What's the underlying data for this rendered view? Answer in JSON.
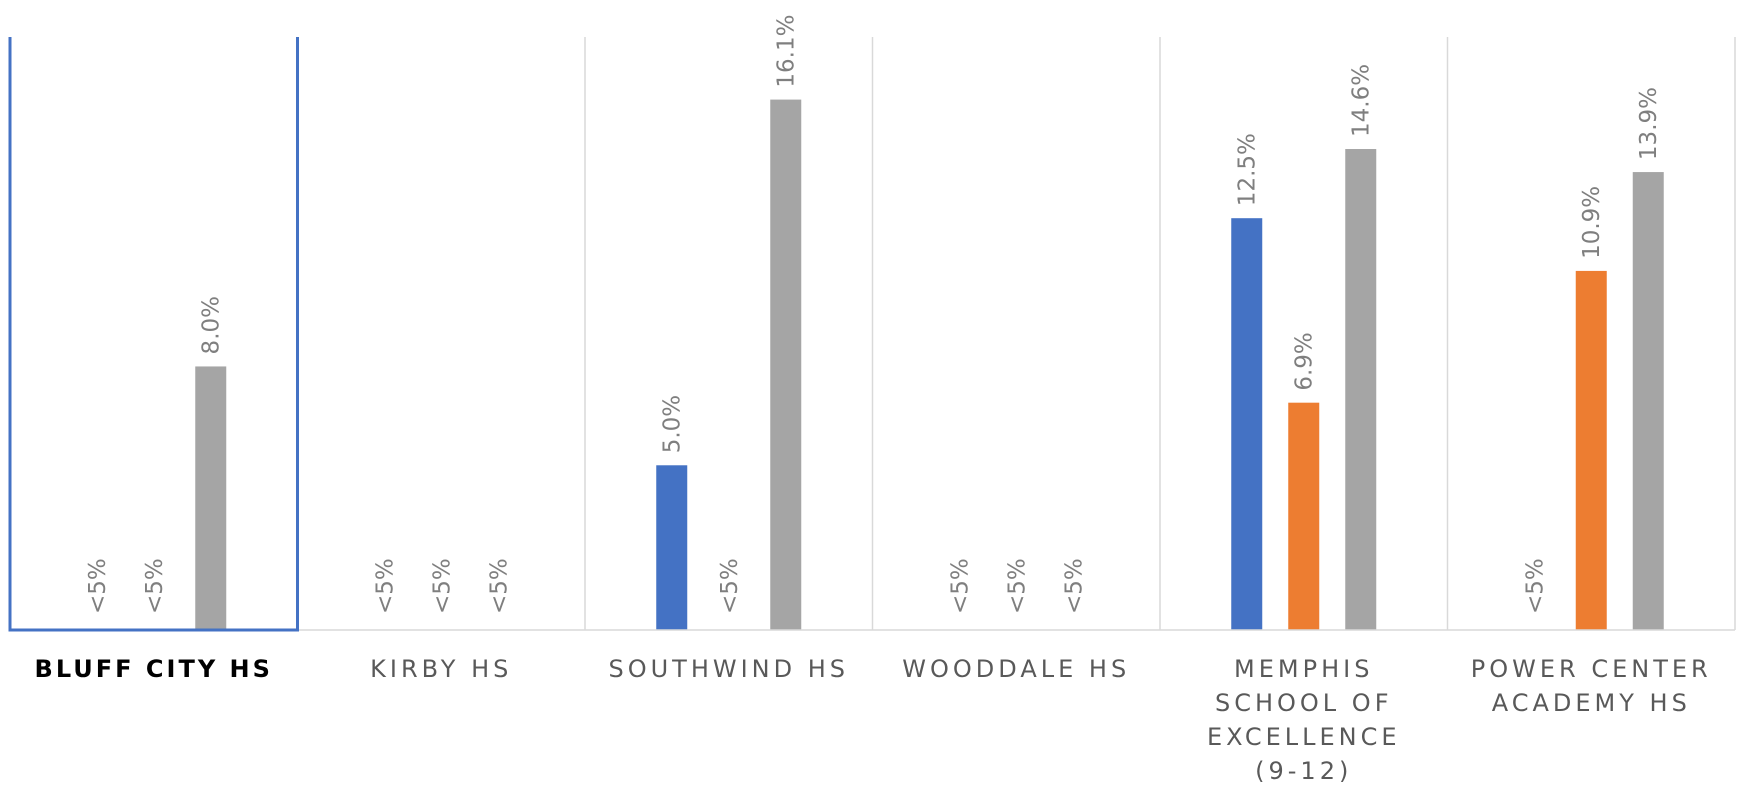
{
  "chart_data": {
    "type": "bar",
    "categories": [
      "BLUFF CITY HS",
      "KIRBY HS",
      "SOUTHWIND HS",
      "WOODDALE HS",
      "MEMPHIS SCHOOL OF EXCELLENCE (9-12)",
      "POWER CENTER ACADEMY HS"
    ],
    "category_lines": [
      [
        "BLUFF CITY HS"
      ],
      [
        "KIRBY HS"
      ],
      [
        "SOUTHWIND HS"
      ],
      [
        "WOODDALE HS"
      ],
      [
        "MEMPHIS",
        "SCHOOL OF",
        "EXCELLENCE",
        "(9-12)"
      ],
      [
        "POWER CENTER",
        "ACADEMY HS"
      ]
    ],
    "highlighted_category": "BLUFF CITY HS",
    "series": [
      {
        "color": "#4472C4",
        "values": [
          null,
          null,
          5.0,
          null,
          12.5,
          null
        ],
        "labels": [
          "<5%",
          "<5%",
          "5.0%",
          "<5%",
          "12.5%",
          "<5%"
        ]
      },
      {
        "color": "#ED7D31",
        "values": [
          null,
          null,
          null,
          null,
          6.9,
          10.9
        ],
        "labels": [
          "<5%",
          "<5%",
          "<5%",
          "<5%",
          "6.9%",
          "10.9%"
        ]
      },
      {
        "color": "#A5A5A5",
        "values": [
          8.0,
          null,
          16.1,
          null,
          14.6,
          13.9
        ],
        "labels": [
          "8.0%",
          "<5%",
          "16.1%",
          "<5%",
          "14.6%",
          "13.9%"
        ]
      }
    ],
    "ylim": [
      0,
      18
    ],
    "grid": "vertical category separators",
    "legend": "none"
  }
}
